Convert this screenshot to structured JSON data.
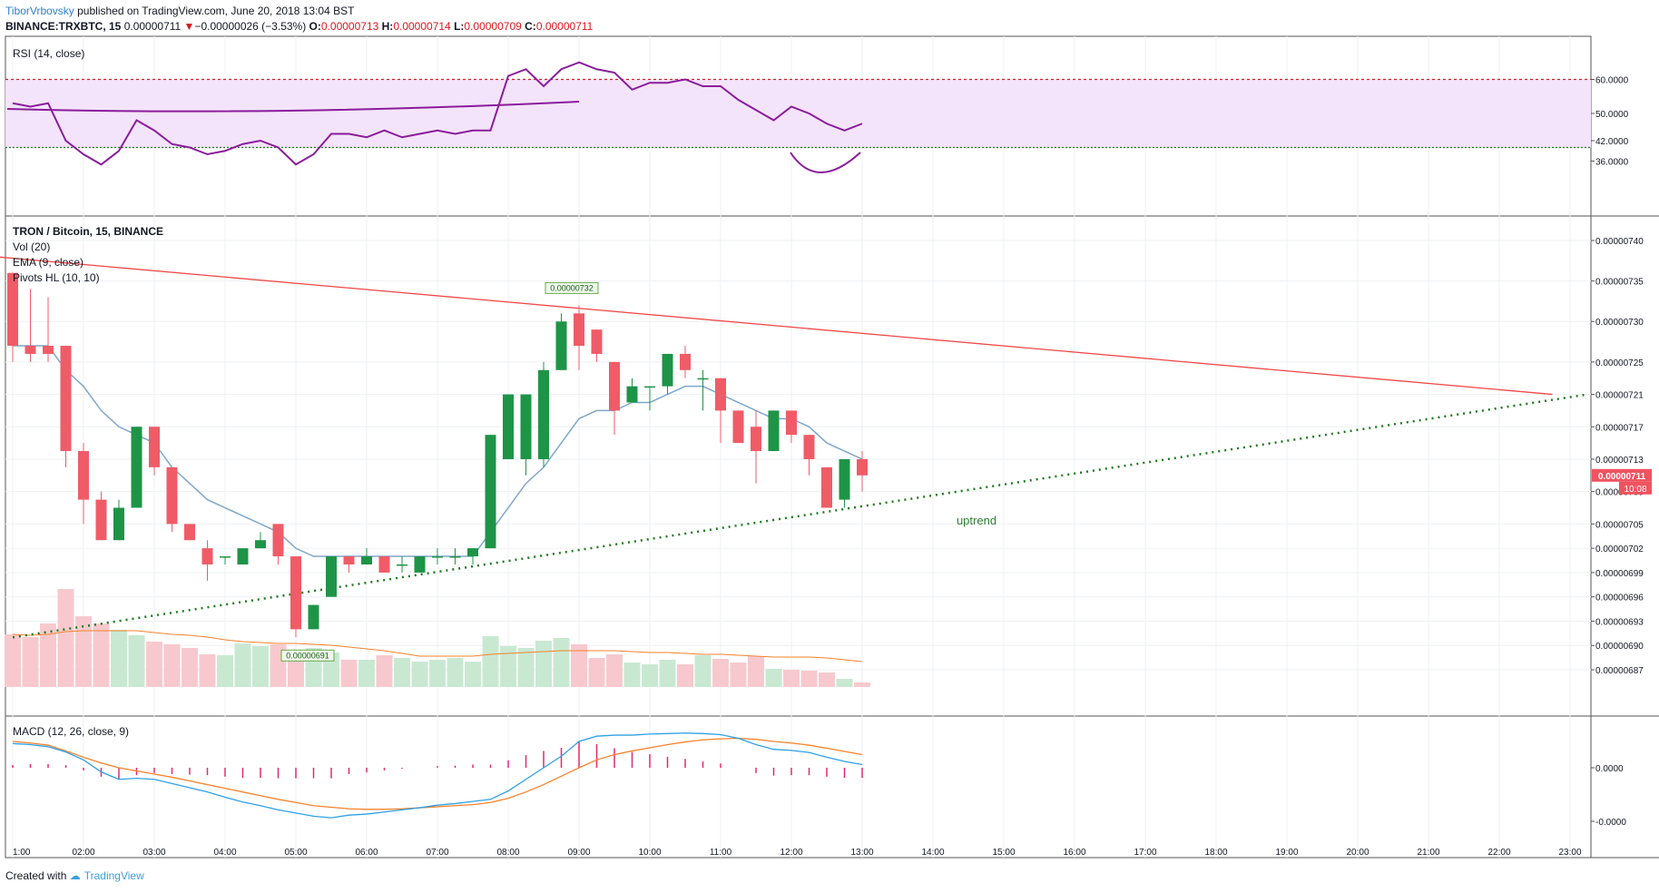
{
  "header": {
    "author": "TiborVrbovsky",
    "published": " published on TradingView.com, June 20, 2018 13:04 BST",
    "symbol": "BINANCE:TRXBTC, 15",
    "last": "0.00000711",
    "change_arrow": "▼",
    "change": "−0.00000026 (−3.53%)",
    "o_label": "O:",
    "o": "0.00000713",
    "h_label": "H:",
    "h": "0.00000714",
    "l_label": "L:",
    "l": "0.00000709",
    "c_label": "C:",
    "c": "0.00000711"
  },
  "panes": {
    "rsi_label": "RSI (14, close)",
    "main_title": "TRON / Bitcoin, 15, BINANCE",
    "vol_label": "Vol (20)",
    "ema_label": "EMA (9, close)",
    "pivots_label": "Pivots HL (10, 10)",
    "macd_label": "MACD (12, 26, close, 9)"
  },
  "annotations": {
    "high_pivot": "0.00000732",
    "low_pivot": "0.00000691",
    "uptrend": "uptrend",
    "price_tag": "0.00000711",
    "countdown": "10:08"
  },
  "footer": {
    "created": "Created with",
    "brand": "TradingView"
  },
  "colors": {
    "up": "#1e9447",
    "down": "#ef5c67",
    "rsi": "#8a1c9b",
    "ema": "#7ea7c9",
    "macd": "#2ea0e6",
    "signal": "#f5822b",
    "hist": "#e4286e",
    "resistance": "#f04848",
    "support": "#1f7a1f",
    "band": "#f4e4fb"
  },
  "chart_data": [
    {
      "type": "candlestick",
      "title": "TRON / Bitcoin, 15, BINANCE",
      "x_ticks": [
        "1:00",
        "02:00",
        "03:00",
        "04:00",
        "05:00",
        "06:00",
        "07:00",
        "08:00",
        "09:00",
        "10:00",
        "11:00",
        "12:00",
        "13:00",
        "14:00",
        "15:00",
        "16:00",
        "17:00",
        "18:00",
        "19:00",
        "20:00",
        "21:00",
        "22:00",
        "23:00"
      ],
      "y_ticks": [
        "0.00000740",
        "0.00000735",
        "0.00000730",
        "0.00000725",
        "0.00000721",
        "0.00000717",
        "0.00000713",
        "0.00000709",
        "0.00000705",
        "0.00000702",
        "0.00000699",
        "0.00000696",
        "0.00000693",
        "0.00000690",
        "0.00000687"
      ],
      "candles": [
        {
          "o": 736,
          "h": 736,
          "l": 725,
          "c": 727
        },
        {
          "o": 727,
          "h": 734,
          "l": 725,
          "c": 726
        },
        {
          "o": 727,
          "h": 733,
          "l": 725,
          "c": 726
        },
        {
          "o": 727,
          "h": 727,
          "l": 712,
          "c": 714
        },
        {
          "o": 714,
          "h": 715,
          "l": 705,
          "c": 708
        },
        {
          "o": 708,
          "h": 709,
          "l": 703,
          "c": 703
        },
        {
          "o": 703,
          "h": 708,
          "l": 703,
          "c": 707
        },
        {
          "o": 707,
          "h": 717,
          "l": 707,
          "c": 717
        },
        {
          "o": 717,
          "h": 717,
          "l": 711,
          "c": 712
        },
        {
          "o": 712,
          "h": 712,
          "l": 704,
          "c": 705
        },
        {
          "o": 705,
          "h": 705,
          "l": 703,
          "c": 703
        },
        {
          "o": 702,
          "h": 703,
          "l": 698,
          "c": 700
        },
        {
          "o": 701,
          "h": 701,
          "l": 700,
          "c": 701
        },
        {
          "o": 700,
          "h": 702,
          "l": 700,
          "c": 702
        },
        {
          "o": 702,
          "h": 704,
          "l": 702,
          "c": 703
        },
        {
          "o": 705,
          "h": 705,
          "l": 700,
          "c": 701
        },
        {
          "o": 701,
          "h": 701,
          "l": 691,
          "c": 692
        },
        {
          "o": 692,
          "h": 695,
          "l": 692,
          "c": 695
        },
        {
          "o": 696,
          "h": 701,
          "l": 696,
          "c": 701
        },
        {
          "o": 701,
          "h": 701,
          "l": 699,
          "c": 700
        },
        {
          "o": 700,
          "h": 702,
          "l": 700,
          "c": 701
        },
        {
          "o": 701,
          "h": 701,
          "l": 699,
          "c": 699
        },
        {
          "o": 700,
          "h": 701,
          "l": 699,
          "c": 700
        },
        {
          "o": 699,
          "h": 701,
          "l": 699,
          "c": 701
        },
        {
          "o": 701,
          "h": 702,
          "l": 700,
          "c": 701
        },
        {
          "o": 701,
          "h": 702,
          "l": 700,
          "c": 701
        },
        {
          "o": 701,
          "h": 702,
          "l": 700,
          "c": 702
        },
        {
          "o": 702,
          "h": 716,
          "l": 702,
          "c": 716
        },
        {
          "o": 713,
          "h": 721,
          "l": 713,
          "c": 721
        },
        {
          "o": 713,
          "h": 721,
          "l": 711,
          "c": 721
        },
        {
          "o": 713,
          "h": 725,
          "l": 712,
          "c": 724
        },
        {
          "o": 724,
          "h": 731,
          "l": 724,
          "c": 730
        },
        {
          "o": 731,
          "h": 732,
          "l": 724,
          "c": 727
        },
        {
          "o": 729,
          "h": 729,
          "l": 725,
          "c": 726
        },
        {
          "o": 725,
          "h": 725,
          "l": 716,
          "c": 719
        },
        {
          "o": 720,
          "h": 723,
          "l": 720,
          "c": 722
        },
        {
          "o": 722,
          "h": 722,
          "l": 719,
          "c": 722
        },
        {
          "o": 722,
          "h": 726,
          "l": 721,
          "c": 726
        },
        {
          "o": 726,
          "h": 727,
          "l": 723,
          "c": 724
        },
        {
          "o": 723,
          "h": 724,
          "l": 719,
          "c": 723
        },
        {
          "o": 723,
          "h": 723,
          "l": 715,
          "c": 719
        },
        {
          "o": 719,
          "h": 719,
          "l": 715,
          "c": 715
        },
        {
          "o": 717,
          "h": 719,
          "l": 710,
          "c": 714
        },
        {
          "o": 714,
          "h": 719,
          "l": 714,
          "c": 719
        },
        {
          "o": 719,
          "h": 719,
          "l": 715,
          "c": 716
        },
        {
          "o": 716,
          "h": 716,
          "l": 711,
          "c": 713
        },
        {
          "o": 712,
          "h": 712,
          "l": 707,
          "c": 707
        },
        {
          "o": 708,
          "h": 713,
          "l": 707,
          "c": 713
        },
        {
          "o": 713,
          "h": 714,
          "l": 709,
          "c": 711
        }
      ],
      "ema": [
        727,
        727,
        727,
        724,
        722,
        719,
        717,
        716,
        715,
        712,
        710,
        708,
        707,
        706,
        705,
        704,
        702,
        701,
        701,
        701,
        701,
        701,
        701,
        701,
        701,
        701,
        701,
        704,
        707,
        710,
        712,
        715,
        718,
        719,
        719,
        720,
        720,
        721,
        722,
        722,
        721,
        720,
        719,
        718,
        718,
        717,
        715,
        714,
        713
      ],
      "volume": [
        58,
        55,
        70,
        108,
        78,
        70,
        63,
        57,
        50,
        47,
        43,
        36,
        35,
        48,
        45,
        47,
        40,
        43,
        38,
        30,
        30,
        35,
        32,
        28,
        30,
        32,
        28,
        56,
        45,
        43,
        51,
        54,
        47,
        32,
        36,
        27,
        25,
        30,
        25,
        35,
        31,
        27,
        34,
        20,
        19,
        18,
        16,
        9,
        5
      ],
      "volume_ma": [
        58,
        57,
        58,
        61,
        62,
        62,
        62,
        62,
        60,
        58,
        57,
        55,
        52,
        50,
        49,
        48,
        48,
        47,
        46,
        44,
        42,
        40,
        37,
        34,
        34,
        34,
        34,
        36,
        37,
        38,
        39,
        40,
        40,
        40,
        40,
        39,
        38,
        38,
        37,
        36,
        36,
        35,
        34,
        33,
        33,
        33,
        32,
        30,
        28
      ],
      "trendlines": [
        {
          "name": "resistance",
          "from": {
            "t": "00:45",
            "y": 738
          },
          "to": {
            "t": "22:45",
            "y": 721
          }
        },
        {
          "name": "uptrend",
          "from": {
            "t": "01:00",
            "y": 691
          },
          "to": {
            "t": "23:15",
            "y": 721
          }
        }
      ]
    },
    {
      "type": "line",
      "title": "RSI (14, close)",
      "y_ticks": [
        "60.0000",
        "50.0000",
        "42.0000",
        "36.0000"
      ],
      "levels": {
        "upper": 60,
        "lower": 40
      },
      "values": [
        53,
        52,
        53,
        42,
        38,
        35,
        39,
        48,
        45,
        41,
        40,
        38,
        39,
        41,
        42,
        40,
        35,
        38,
        44,
        44,
        43,
        45,
        43,
        44,
        45,
        44,
        45,
        45,
        61,
        63,
        58,
        63,
        65,
        63,
        62,
        57,
        59,
        59,
        60,
        58,
        58,
        54,
        51,
        48,
        52,
        50,
        47,
        45,
        47
      ]
    },
    {
      "type": "line",
      "title": "MACD (12, 26, close, 9)",
      "y_ticks": [
        "0.0000",
        "-0.0000"
      ],
      "macd": [
        0.46,
        0.44,
        0.4,
        0.3,
        0.15,
        -0.08,
        -0.22,
        -0.2,
        -0.22,
        -0.3,
        -0.38,
        -0.46,
        -0.56,
        -0.65,
        -0.72,
        -0.8,
        -0.86,
        -0.92,
        -0.95,
        -0.9,
        -0.88,
        -0.84,
        -0.8,
        -0.76,
        -0.71,
        -0.68,
        -0.64,
        -0.6,
        -0.44,
        -0.22,
        0,
        0.22,
        0.5,
        0.6,
        0.62,
        0.62,
        0.64,
        0.65,
        0.66,
        0.65,
        0.63,
        0.56,
        0.44,
        0.35,
        0.33,
        0.29,
        0.2,
        0.12,
        0.06
      ],
      "signal": [
        0.5,
        0.47,
        0.43,
        0.32,
        0.2,
        0.09,
        0,
        -0.06,
        -0.12,
        -0.18,
        -0.25,
        -0.32,
        -0.39,
        -0.46,
        -0.53,
        -0.6,
        -0.66,
        -0.72,
        -0.75,
        -0.78,
        -0.79,
        -0.79,
        -0.78,
        -0.76,
        -0.74,
        -0.72,
        -0.7,
        -0.66,
        -0.58,
        -0.46,
        -0.32,
        -0.16,
        0,
        0.15,
        0.25,
        0.32,
        0.38,
        0.44,
        0.49,
        0.53,
        0.55,
        0.56,
        0.54,
        0.5,
        0.47,
        0.43,
        0.37,
        0.31,
        0.25
      ],
      "histogram": [
        0.05,
        0.07,
        0.07,
        0.05,
        -0.05,
        -0.17,
        -0.22,
        -0.14,
        -0.1,
        -0.12,
        -0.13,
        -0.14,
        -0.17,
        -0.19,
        -0.19,
        -0.2,
        -0.2,
        -0.2,
        -0.2,
        -0.12,
        -0.09,
        -0.05,
        -0.02,
        0,
        0.03,
        0.04,
        0.06,
        0.06,
        0.14,
        0.24,
        0.32,
        0.38,
        0.5,
        0.45,
        0.37,
        0.3,
        0.26,
        0.21,
        0.17,
        0.12,
        0.08,
        0,
        -0.1,
        -0.15,
        -0.14,
        -0.14,
        -0.17,
        -0.19,
        -0.19
      ]
    }
  ]
}
